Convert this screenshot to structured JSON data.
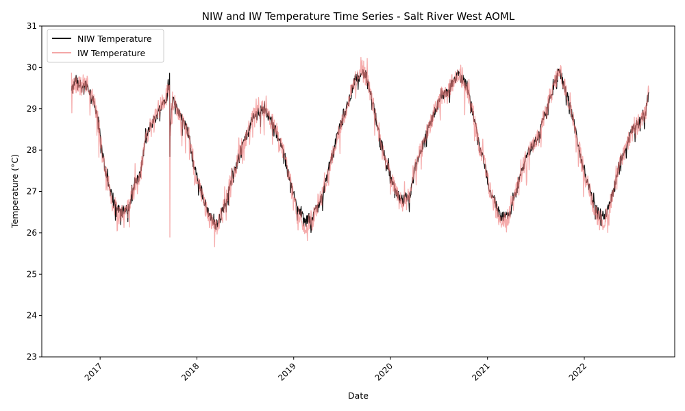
{
  "chart_data": {
    "type": "line",
    "title": "NIW and IW Temperature Time Series - Salt River West AOML",
    "xlabel": "Date",
    "ylabel": "Temperature (°C)",
    "xlim": [
      "2016-05-26",
      "2022-12-08"
    ],
    "ylim": [
      23,
      31
    ],
    "x_ticks": [
      "2017",
      "2018",
      "2019",
      "2020",
      "2021",
      "2022"
    ],
    "y_ticks": [
      "23",
      "24",
      "25",
      "26",
      "27",
      "28",
      "29",
      "30",
      "31"
    ],
    "grid": false,
    "legend": {
      "position": "top-left"
    },
    "series": [
      {
        "name": "NIW Temperature",
        "color": "#000000",
        "x": [
          "2016-09-15",
          "2016-10-01",
          "2016-10-20",
          "2016-11-10",
          "2016-12-01",
          "2016-12-20",
          "2017-01-10",
          "2017-02-01",
          "2017-02-20",
          "2017-03-15",
          "2017-04-01",
          "2017-04-20",
          "2017-05-10",
          "2017-06-01",
          "2017-06-20",
          "2017-07-10",
          "2017-08-01",
          "2017-08-20",
          "2017-09-10",
          "2017-09-20",
          "2017-09-21",
          "2017-09-22",
          "2017-10-01",
          "2017-10-20",
          "2017-11-10",
          "2017-12-01",
          "2017-12-20",
          "2018-01-10",
          "2018-02-01",
          "2018-02-20",
          "2018-03-15",
          "2018-04-01",
          "2018-04-20",
          "2018-05-10",
          "2018-06-01",
          "2018-06-20",
          "2018-07-10",
          "2018-08-01",
          "2018-08-20",
          "2018-09-10",
          "2018-10-01",
          "2018-10-20",
          "2018-11-10",
          "2018-12-01",
          "2018-12-20",
          "2019-01-10",
          "2019-02-01",
          "2019-02-20",
          "2019-03-15",
          "2019-04-01",
          "2019-04-20",
          "2019-05-10",
          "2019-06-01",
          "2019-06-20",
          "2019-07-10",
          "2019-08-01",
          "2019-08-20",
          "2019-09-10",
          "2019-10-01",
          "2019-10-20",
          "2019-11-10",
          "2019-12-01",
          "2019-12-20",
          "2020-01-10",
          "2020-02-01",
          "2020-02-20",
          "2020-03-15",
          "2020-04-01",
          "2020-04-20",
          "2020-05-10",
          "2020-06-01",
          "2020-06-20",
          "2020-07-10",
          "2020-08-01",
          "2020-08-20",
          "2020-09-10",
          "2020-10-01",
          "2020-10-20",
          "2020-11-10",
          "2020-12-01",
          "2020-12-20",
          "2021-01-10",
          "2021-02-01",
          "2021-02-20",
          "2021-03-15",
          "2021-04-01",
          "2021-04-20",
          "2021-05-10",
          "2021-06-01",
          "2021-06-20",
          "2021-07-10",
          "2021-08-01",
          "2021-08-20",
          "2021-09-10",
          "2021-10-01",
          "2021-10-20",
          "2021-11-10",
          "2021-12-01",
          "2021-12-20",
          "2022-01-10",
          "2022-02-01",
          "2022-02-20",
          "2022-03-15",
          "2022-04-01",
          "2022-04-20",
          "2022-05-10",
          "2022-06-01",
          "2022-06-20",
          "2022-07-10",
          "2022-08-01",
          "2022-08-20",
          "2022-09-01"
        ],
        "values": [
          29.4,
          29.7,
          29.55,
          29.6,
          29.3,
          28.9,
          27.9,
          27.2,
          26.7,
          26.6,
          26.5,
          26.6,
          27.2,
          27.4,
          28.2,
          28.6,
          28.8,
          29.1,
          29.3,
          29.8,
          27.8,
          28.6,
          29.2,
          29.0,
          28.7,
          28.4,
          27.6,
          27.2,
          26.7,
          26.4,
          26.2,
          26.4,
          26.8,
          27.3,
          27.7,
          28.1,
          28.4,
          28.8,
          28.9,
          29.0,
          28.8,
          28.6,
          28.2,
          27.8,
          27.2,
          26.7,
          26.4,
          26.3,
          26.4,
          26.7,
          26.9,
          27.5,
          28.0,
          28.5,
          28.8,
          29.3,
          29.7,
          29.9,
          29.8,
          29.3,
          28.7,
          28.1,
          27.6,
          27.2,
          26.9,
          26.8,
          26.9,
          27.5,
          27.9,
          28.3,
          28.7,
          29.0,
          29.3,
          29.4,
          29.6,
          29.8,
          29.7,
          29.4,
          28.8,
          28.1,
          27.7,
          27.0,
          26.7,
          26.4,
          26.4,
          26.6,
          27.0,
          27.5,
          27.9,
          28.1,
          28.3,
          28.8,
          29.2,
          29.6,
          29.9,
          29.5,
          29.0,
          28.4,
          27.8,
          27.3,
          26.8,
          26.5,
          26.4,
          26.6,
          27.0,
          27.6,
          28.0,
          28.3,
          28.6,
          28.7,
          28.9,
          29.4
        ]
      },
      {
        "name": "IW Temperature",
        "color": "#f08080",
        "x": [
          "2016-09-15",
          "2016-10-01",
          "2016-10-20",
          "2016-11-10",
          "2016-12-01",
          "2016-12-20",
          "2017-01-10",
          "2017-02-01",
          "2017-02-20",
          "2017-03-15",
          "2017-04-01",
          "2017-04-20",
          "2017-05-10",
          "2017-06-01",
          "2017-06-20",
          "2017-07-10",
          "2017-08-01",
          "2017-08-20",
          "2017-09-10",
          "2017-09-20",
          "2017-09-21",
          "2017-09-22",
          "2017-10-01",
          "2017-10-20",
          "2017-11-10",
          "2017-12-01",
          "2017-12-20",
          "2018-01-10",
          "2018-02-01",
          "2018-02-20",
          "2018-03-15",
          "2018-04-01",
          "2018-04-20",
          "2018-05-10",
          "2018-06-01",
          "2018-06-20",
          "2018-07-10",
          "2018-08-01",
          "2018-08-20",
          "2018-09-10",
          "2018-10-01",
          "2018-10-20",
          "2018-11-10",
          "2018-12-01",
          "2018-12-20",
          "2019-01-10",
          "2019-02-01",
          "2019-02-20",
          "2019-03-15",
          "2019-04-01",
          "2019-04-20",
          "2019-05-10",
          "2019-06-01",
          "2019-06-20",
          "2019-07-10",
          "2019-08-01",
          "2019-08-20",
          "2019-09-10",
          "2019-10-01",
          "2019-10-20",
          "2019-11-10",
          "2019-12-01",
          "2019-12-20",
          "2020-01-10",
          "2020-02-01",
          "2020-02-20",
          "2020-03-15",
          "2020-04-01",
          "2020-04-20",
          "2020-05-10",
          "2020-06-01",
          "2020-06-20",
          "2020-07-10",
          "2020-08-01",
          "2020-08-20",
          "2020-09-10",
          "2020-10-01",
          "2020-10-20",
          "2020-11-10",
          "2020-12-01",
          "2020-12-20",
          "2021-01-10",
          "2021-02-01",
          "2021-02-20",
          "2021-03-15",
          "2021-04-01",
          "2021-04-20",
          "2021-05-10",
          "2021-06-01",
          "2021-06-20",
          "2021-07-10",
          "2021-08-01",
          "2021-08-20",
          "2021-09-10",
          "2021-10-01",
          "2021-10-20",
          "2021-11-10",
          "2021-12-01",
          "2021-12-20",
          "2022-01-10",
          "2022-02-01",
          "2022-02-20",
          "2022-03-15",
          "2022-04-01",
          "2022-04-20",
          "2022-05-10",
          "2022-06-01",
          "2022-06-20",
          "2022-07-10",
          "2022-08-01",
          "2022-08-20",
          "2022-09-01"
        ],
        "values": [
          29.4,
          29.7,
          29.5,
          29.6,
          29.3,
          28.9,
          27.9,
          27.2,
          26.6,
          26.5,
          26.5,
          26.6,
          27.2,
          27.4,
          28.2,
          28.6,
          28.8,
          29.1,
          29.3,
          29.6,
          26.1,
          28.4,
          29.2,
          29.0,
          28.7,
          28.4,
          27.6,
          27.1,
          26.6,
          26.3,
          26.1,
          26.4,
          26.8,
          27.3,
          27.7,
          28.1,
          28.4,
          28.8,
          28.9,
          29.0,
          28.8,
          28.6,
          28.2,
          27.8,
          27.2,
          26.6,
          26.3,
          26.2,
          26.4,
          26.7,
          26.9,
          27.5,
          28.0,
          28.5,
          28.8,
          29.3,
          29.7,
          29.9,
          29.8,
          29.3,
          28.7,
          28.1,
          27.6,
          27.2,
          26.8,
          26.7,
          26.9,
          27.5,
          27.9,
          28.3,
          28.7,
          29.0,
          29.3,
          29.4,
          29.6,
          29.8,
          29.7,
          29.4,
          28.8,
          28.1,
          27.7,
          27.0,
          26.6,
          26.3,
          26.3,
          26.6,
          27.0,
          27.5,
          27.9,
          28.1,
          28.3,
          28.8,
          29.2,
          29.6,
          29.9,
          29.5,
          29.0,
          28.4,
          27.8,
          27.3,
          26.7,
          26.4,
          26.3,
          26.5,
          27.0,
          27.6,
          28.0,
          28.3,
          28.6,
          28.7,
          28.9,
          29.4
        ]
      }
    ]
  }
}
